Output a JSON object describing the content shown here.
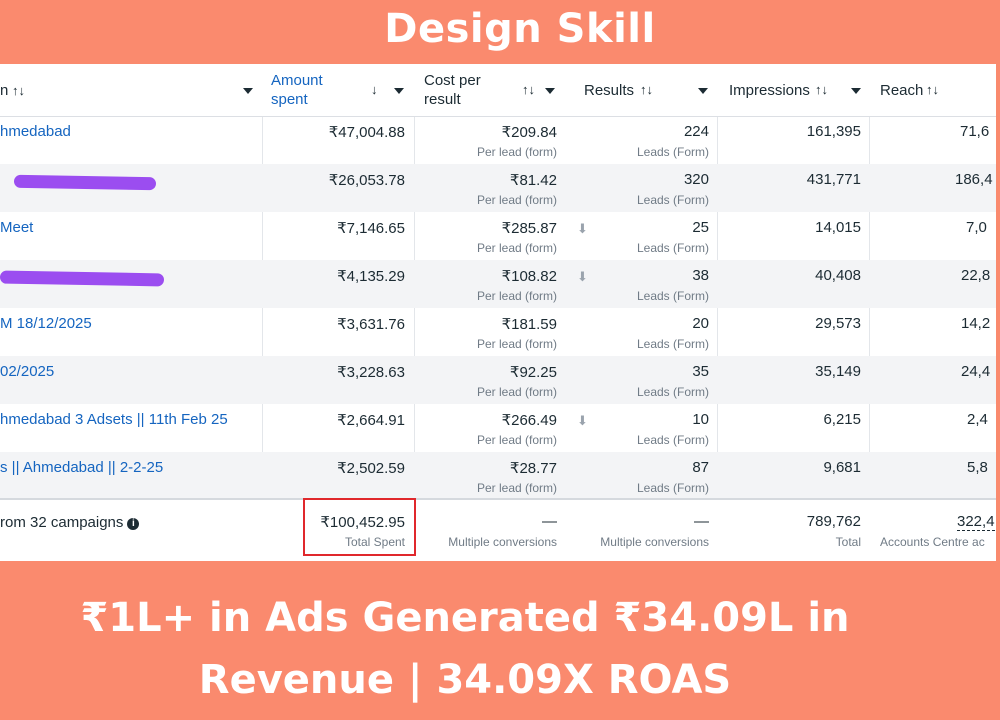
{
  "brand_title": "Design Skill",
  "headline_line1": "₹1L+ in Ads Generated ₹34.09L in",
  "headline_line2": "Revenue | 34.09X ROAS",
  "table": {
    "columns": {
      "name": "n",
      "name_sort": "↑↓",
      "amount_spent": [
        "Amount",
        "spent"
      ],
      "amount_sort": "↓",
      "cost_per_result": [
        "Cost per",
        "result"
      ],
      "cost_sort": "↑↓",
      "results": "Results",
      "results_sort": "↑↓",
      "impressions": "Impressions",
      "impressions_sort": "↑↓",
      "reach": "Reach",
      "reach_sort": "↑↓"
    },
    "rows": [
      {
        "name": "hmedabad",
        "amount": "₹47,004.88",
        "cost": "₹209.84",
        "cost_sub": "Per lead (form)",
        "results": "224",
        "results_sub": "Leads (Form)",
        "impressions": "161,395",
        "reach": "71,6"
      },
      {
        "name": "",
        "redacted": true,
        "amount": "₹26,053.78",
        "cost": "₹81.42",
        "cost_sub": "Per lead (form)",
        "results": "320",
        "results_sub": "Leads (Form)",
        "impressions": "431,771",
        "reach": "186,4"
      },
      {
        "name": "Meet",
        "amount": "₹7,146.65",
        "cost": "₹285.87",
        "cost_sub": "Per lead (form)",
        "results": "25",
        "results_sub": "Leads (Form)",
        "impressions": "14,015",
        "reach": "7,0",
        "download": true
      },
      {
        "name": "",
        "redacted": true,
        "amount": "₹4,135.29",
        "cost": "₹108.82",
        "cost_sub": "Per lead (form)",
        "results": "38",
        "results_sub": "Leads (Form)",
        "impressions": "40,408",
        "reach": "22,8",
        "download": true
      },
      {
        "name": "M 18/12/2025",
        "amount": "₹3,631.76",
        "cost": "₹181.59",
        "cost_sub": "Per lead (form)",
        "results": "20",
        "results_sub": "Leads (Form)",
        "impressions": "29,573",
        "reach": "14,2"
      },
      {
        "name": "02/2025",
        "amount": "₹3,228.63",
        "cost": "₹92.25",
        "cost_sub": "Per lead (form)",
        "results": "35",
        "results_sub": "Leads (Form)",
        "impressions": "35,149",
        "reach": "24,4"
      },
      {
        "name": "hmedabad 3 Adsets || 11th Feb 25",
        "amount": "₹2,664.91",
        "cost": "₹266.49",
        "cost_sub": "Per lead (form)",
        "results": "10",
        "results_sub": "Leads (Form)",
        "impressions": "6,215",
        "reach": "2,4",
        "download": true
      },
      {
        "name": "s || Ahmedabad || 2-2-25",
        "amount": "₹2,502.59",
        "cost": "₹28.77",
        "cost_sub": "Per lead (form)",
        "results": "87",
        "results_sub": "Leads (Form)",
        "impressions": "9,681",
        "reach": "5,8"
      }
    ],
    "footer": {
      "name": "rom 32 campaigns",
      "amount": "₹100,452.95",
      "amount_sub": "Total Spent",
      "cost": "—",
      "cost_sub": "Multiple conversions",
      "results": "—",
      "results_sub": "Multiple conversions",
      "impressions": "789,762",
      "impressions_sub": "Total",
      "reach": "322,4",
      "reach_sub": "Accounts Centre ac"
    }
  },
  "colors": {
    "banner": "#fa8a6e",
    "link": "#1565c0",
    "highlight_box": "#e0282c",
    "redaction": "#9b4df0"
  }
}
